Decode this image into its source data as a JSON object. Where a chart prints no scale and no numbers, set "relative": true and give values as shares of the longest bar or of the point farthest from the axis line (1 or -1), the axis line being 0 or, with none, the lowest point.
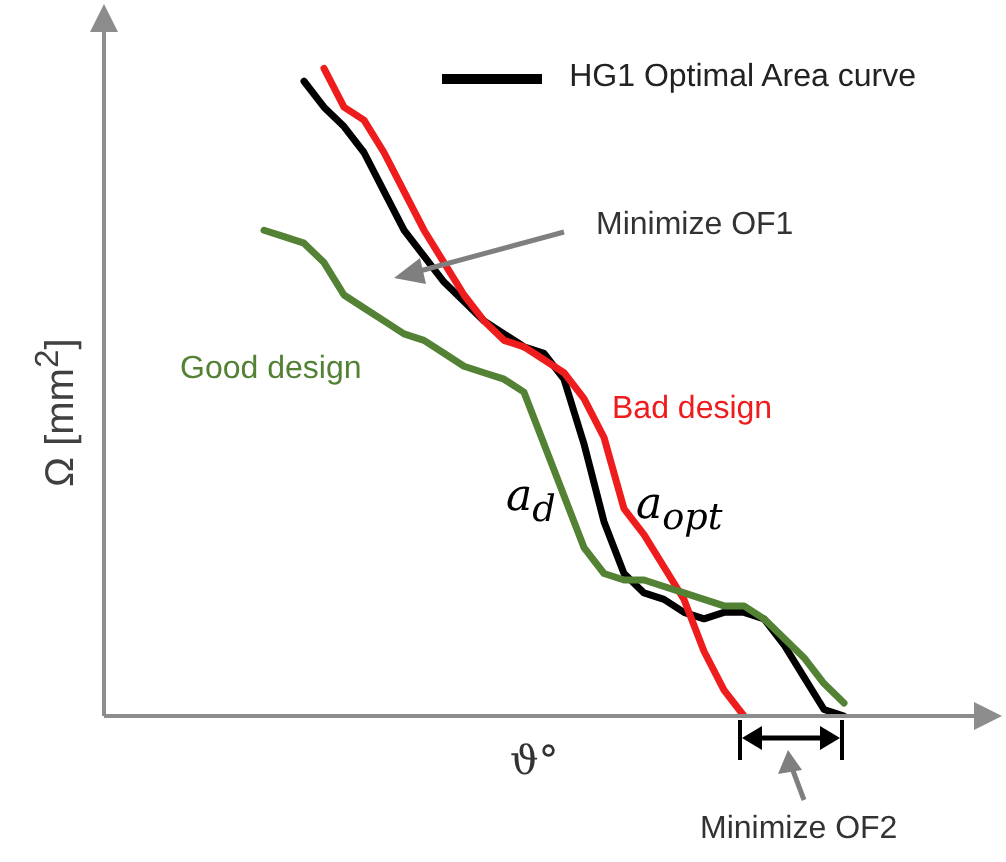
{
  "chart_data": {
    "type": "line",
    "relative": true,
    "xlabel": "ϑ°",
    "ylabel": "Ω [mm$^{2}$]",
    "legend": "top right",
    "categories": [
      null,
      null,
      null,
      null,
      null,
      null,
      null,
      null,
      null,
      null,
      null,
      null,
      null,
      null,
      null,
      null,
      null,
      null,
      null,
      null,
      null,
      null,
      null,
      null,
      null,
      null,
      null,
      null,
      null,
      null,
      null,
      null,
      null,
      null,
      null,
      null,
      null,
      null,
      null,
      null,
      null,
      null,
      null,
      null,
      null
    ],
    "series": [
      {
        "name": "HG1 Optimal Area curve",
        "color": "#000000",
        "values": [
          null,
          null,
          null,
          null,
          null,
          null,
          null,
          null,
          null,
          null,
          0.98,
          0.94,
          0.91,
          0.87,
          0.81,
          0.75,
          0.71,
          0.67,
          0.64,
          0.61,
          0.59,
          0.57,
          0.56,
          0.52,
          0.42,
          0.3,
          0.22,
          0.19,
          0.18,
          0.16,
          0.15,
          0.16,
          0.16,
          0.15,
          0.11,
          0.06,
          0.01,
          0,
          null,
          null,
          null,
          null,
          null,
          null,
          null
        ]
      },
      {
        "name": "Bad design",
        "color": "#ee1c1c",
        "values": [
          null,
          null,
          null,
          null,
          null,
          null,
          null,
          null,
          null,
          null,
          null,
          1,
          0.94,
          0.92,
          0.87,
          0.81,
          0.75,
          0.7,
          0.65,
          0.61,
          0.58,
          0.57,
          0.55,
          0.53,
          0.49,
          0.43,
          0.32,
          0.28,
          0.23,
          0.18,
          0.1,
          0.04,
          0,
          null,
          null,
          null,
          null,
          null,
          null,
          null,
          null,
          null,
          null,
          null,
          null
        ]
      },
      {
        "name": "Good design",
        "color": "#548235",
        "values": [
          null,
          null,
          null,
          null,
          null,
          null,
          null,
          null,
          0.75,
          0.74,
          0.73,
          0.7,
          0.65,
          0.63,
          0.61,
          0.59,
          0.58,
          0.56,
          0.54,
          0.53,
          0.52,
          0.5,
          0.42,
          0.34,
          0.26,
          0.22,
          0.21,
          0.21,
          0.2,
          0.19,
          0.18,
          0.17,
          0.17,
          0.15,
          0.12,
          0.09,
          0.05,
          0.02,
          null,
          null,
          null,
          null,
          null,
          null,
          null
        ]
      }
    ],
    "annotations": [
      "Minimize OF1",
      "a$_{d}$",
      "a$_{opt}$",
      "Minimize OF2"
    ]
  }
}
